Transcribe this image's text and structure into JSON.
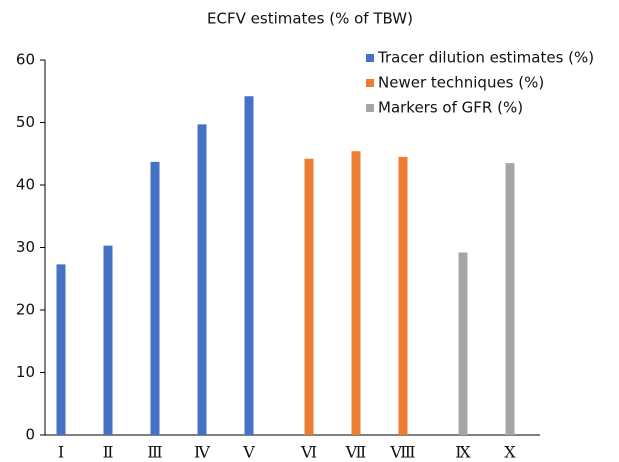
{
  "chart_data": {
    "type": "bar",
    "title": "ECFV estimates (% of TBW)",
    "categories": [
      "Ⅰ",
      "Ⅱ",
      "Ⅲ",
      "Ⅳ",
      "Ⅴ",
      "Ⅵ",
      "Ⅶ",
      "Ⅷ",
      "Ⅸ",
      "Ⅹ"
    ],
    "series": [
      {
        "name": "Tracer dilution estimates (%)",
        "color": "#4472c4",
        "values": [
          27.3,
          30.3,
          43.7,
          49.7,
          54.2,
          null,
          null,
          null,
          null,
          null
        ]
      },
      {
        "name": "Newer techniques (%)",
        "color": "#ed7d31",
        "values": [
          null,
          null,
          null,
          null,
          null,
          44.2,
          45.4,
          44.5,
          null,
          null
        ]
      },
      {
        "name": "Markers of GFR (%)",
        "color": "#a5a5a5",
        "values": [
          null,
          null,
          null,
          null,
          null,
          null,
          null,
          null,
          29.2,
          43.5
        ]
      }
    ],
    "ylim": [
      0,
      60
    ],
    "yticks": [
      0,
      10,
      20,
      30,
      40,
      50,
      60
    ],
    "grid": false,
    "legend": "top-right"
  }
}
